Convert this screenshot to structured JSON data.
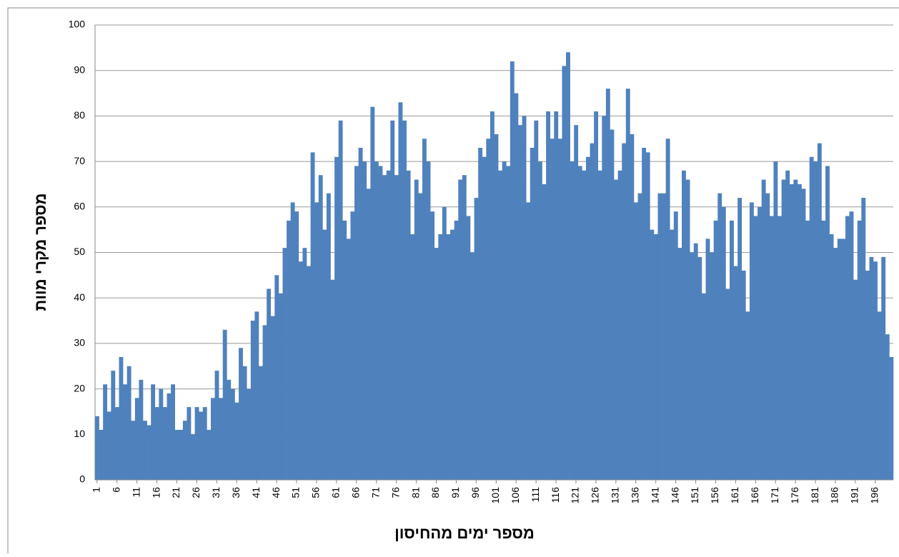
{
  "chart_data": {
    "type": "bar",
    "x_label": "מספר ימים מהחיסון",
    "y_label": "מספר מקרי מוות",
    "color": "#4f81bd",
    "grid": true,
    "ylim": [
      0,
      100
    ],
    "yticks": [
      0,
      10,
      20,
      30,
      40,
      50,
      60,
      70,
      80,
      90,
      100
    ],
    "categories": [
      "1",
      null,
      null,
      null,
      null,
      "6",
      null,
      null,
      null,
      null,
      "11",
      null,
      null,
      null,
      null,
      "16",
      null,
      null,
      null,
      null,
      "21",
      null,
      null,
      null,
      null,
      "26",
      null,
      null,
      null,
      null,
      "31",
      null,
      null,
      null,
      null,
      "36",
      null,
      null,
      null,
      null,
      "41",
      null,
      null,
      null,
      null,
      "46",
      null,
      null,
      null,
      null,
      "51",
      null,
      null,
      null,
      null,
      "56",
      null,
      null,
      null,
      null,
      "61",
      null,
      null,
      null,
      null,
      "66",
      null,
      null,
      null,
      null,
      "71",
      null,
      null,
      null,
      null,
      "76",
      null,
      null,
      null,
      null,
      "81",
      null,
      null,
      null,
      null,
      "86",
      null,
      null,
      null,
      null,
      "91",
      null,
      null,
      null,
      null,
      "96",
      null,
      null,
      null,
      null,
      "101",
      null,
      null,
      null,
      null,
      "106",
      null,
      null,
      null,
      null,
      "111",
      null,
      null,
      null,
      null,
      "116",
      null,
      null,
      null,
      null,
      "121",
      null,
      null,
      null,
      null,
      "126",
      null,
      null,
      null,
      null,
      "131",
      null,
      null,
      null,
      null,
      "136",
      null,
      null,
      null,
      null,
      "141",
      null,
      null,
      null,
      null,
      "146",
      null,
      null,
      null,
      null,
      "151",
      null,
      null,
      null,
      null,
      "156",
      null,
      null,
      null,
      null,
      "161",
      null,
      null,
      null,
      null,
      "166",
      null,
      null,
      null,
      null,
      "171",
      null,
      null,
      null,
      null,
      "176",
      null,
      null,
      null,
      null,
      "181",
      null,
      null,
      null,
      null,
      "186",
      null,
      null,
      null,
      null,
      "191",
      null,
      null,
      null,
      null,
      "196",
      null,
      null,
      null,
      null
    ],
    "values": [
      14,
      11,
      21,
      15,
      24,
      16,
      27,
      21,
      25,
      13,
      18,
      22,
      13,
      12,
      21,
      16,
      20,
      16,
      19,
      21,
      11,
      11,
      13,
      16,
      10,
      16,
      15,
      16,
      11,
      18,
      24,
      18,
      33,
      22,
      20,
      17,
      29,
      25,
      20,
      35,
      37,
      25,
      34,
      42,
      36,
      45,
      41,
      51,
      57,
      61,
      59,
      48,
      51,
      47,
      72,
      61,
      67,
      55,
      63,
      44,
      71,
      79,
      57,
      53,
      59,
      69,
      73,
      70,
      64,
      82,
      70,
      69,
      67,
      68,
      79,
      67,
      83,
      79,
      68,
      54,
      66,
      63,
      75,
      70,
      59,
      51,
      54,
      60,
      54,
      55,
      57,
      66,
      67,
      58,
      50,
      62,
      73,
      71,
      75,
      81,
      76,
      68,
      70,
      69,
      92,
      85,
      78,
      80,
      61,
      73,
      79,
      70,
      65,
      81,
      75,
      81,
      75,
      91,
      94,
      70,
      78,
      69,
      68,
      71,
      74,
      81,
      68,
      80,
      86,
      77,
      66,
      68,
      74,
      86,
      76,
      61,
      63,
      73,
      72,
      55,
      54,
      63,
      63,
      75,
      55,
      59,
      51,
      68,
      66,
      50,
      52,
      49,
      41,
      53,
      50,
      57,
      63,
      60,
      42,
      57,
      47,
      62,
      46,
      37,
      61,
      58,
      60,
      66,
      63,
      58,
      70,
      58,
      66,
      68,
      65,
      66,
      65,
      64,
      57,
      71,
      70,
      74,
      57,
      69,
      54,
      51,
      53,
      53,
      58,
      59,
      44,
      57,
      62,
      46,
      49,
      48,
      37,
      49,
      32,
      27
    ]
  }
}
